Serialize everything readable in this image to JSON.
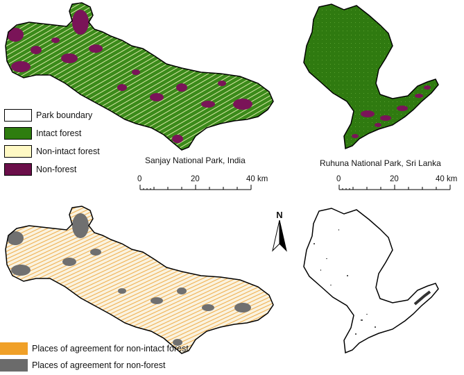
{
  "legend_top": [
    {
      "label": "Park boundary",
      "color": "#ffffff"
    },
    {
      "label": "Intact forest",
      "color": "#2e7d0f"
    },
    {
      "label": "Non-intact forest",
      "color": "#fff9c4"
    },
    {
      "label": "Non-forest",
      "color": "#6b0f4a"
    }
  ],
  "legend_bottom": [
    {
      "label": "Places of agreement for non-intact forest",
      "color": "#f0a028"
    },
    {
      "label": "Places of agreement for non-forest",
      "color": "#6b6b6b"
    }
  ],
  "captions": {
    "left": "Sanjay National Park, India",
    "right": "Ruhuna National Park, Sri Lanka"
  },
  "scalebar": {
    "ticks": [
      "0",
      "20",
      "40 km"
    ]
  },
  "north_arrow": {
    "label": "N"
  }
}
